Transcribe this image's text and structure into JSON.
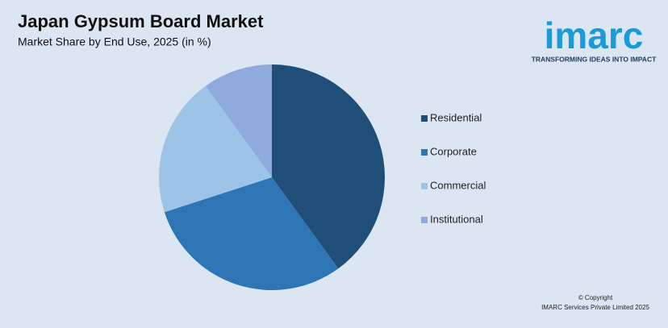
{
  "chart_data": {
    "type": "pie",
    "title": "Japan Gypsum Board Market",
    "subtitle": "Market Share by End Use, 2025 (in %)",
    "categories": [
      "Residential",
      "Corporate",
      "Commercial",
      "Institutional"
    ],
    "values": [
      40,
      30,
      20,
      10
    ],
    "colors": [
      "#1f4e79",
      "#2e75b6",
      "#9dc3e6",
      "#8faadc"
    ],
    "legend": "right"
  },
  "logo": {
    "name": "imarc",
    "tagline": "TRANSFORMING IDEAS INTO IMPACT"
  },
  "copyright": [
    "© Copyright",
    "IMARC Services Private Limited 2025"
  ]
}
